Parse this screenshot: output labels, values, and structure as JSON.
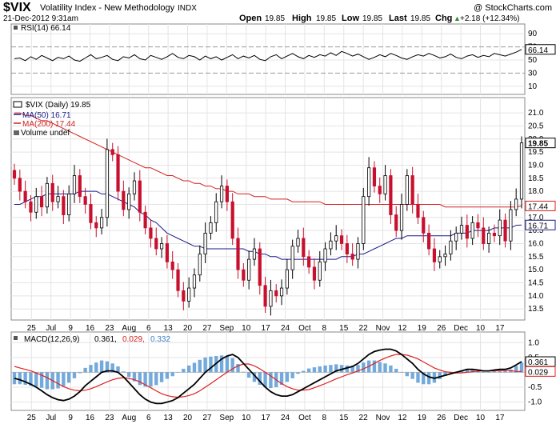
{
  "header": {
    "symbol": "$VIX",
    "name": "Volatility Index - New Methodology",
    "exchange": "INDX",
    "copyright": "@ StockCharts.com",
    "datetime": "21-Dec-2012 9:31am",
    "open_label": "Open",
    "open": "19.85",
    "high_label": "High",
    "high": "19.85",
    "low_label": "Low",
    "low": "19.85",
    "last_label": "Last",
    "last": "19.85",
    "chg_label": "Chg",
    "chg": "+2.18 (+12.34%)",
    "chg_arrow": "▲"
  },
  "colors": {
    "price_up": "#000000",
    "price_down": "#c8102e",
    "ma50": "#1a1a8c",
    "ma200": "#d42020",
    "macd_line": "#000000",
    "signal_line": "#e02020",
    "histogram": "#5b9bd5",
    "grid": "#e4e4e4"
  },
  "rsi_panel": {
    "legend": "RSI(14) 66.14",
    "value_tag": "66.14",
    "ticks": [
      "90",
      "70",
      "50",
      "30",
      "10"
    ],
    "overbought": 70,
    "oversold": 30
  },
  "price_panel": {
    "legend_main": "$VIX (Daily) 19.85",
    "legend_ma50": "MA(50) 16.71",
    "legend_ma200": "MA(200) 17.44",
    "legend_volume": "Volume undef",
    "tag_last": "19.85",
    "tag_ma200": "17.44",
    "tag_ma50": "16.71",
    "y_ticks": [
      "21.0",
      "20.5",
      "20.0",
      "19.5",
      "19.0",
      "18.5",
      "18.0",
      "17.5",
      "17.0",
      "16.5",
      "16.0",
      "15.5",
      "15.0",
      "14.5",
      "14.0",
      "13.5"
    ]
  },
  "macd_panel": {
    "legend_label": "MACD(12,26,9)",
    "legend_macd": "0.361,",
    "legend_signal": "0.029,",
    "legend_hist": "0.332",
    "tag_macd": "0.361",
    "tag_signal": "0.029",
    "ticks": [
      "1.0",
      "0.5",
      "0.0",
      "-0.5",
      "-1.0"
    ]
  },
  "x_axis": {
    "labels": [
      "25",
      "Jul",
      "9",
      "16",
      "23",
      "Aug",
      "6",
      "13",
      "20",
      "27",
      "Sep",
      "10",
      "17",
      "24",
      "Oct",
      "8",
      "15",
      "22",
      "Nov",
      "12",
      "19",
      "26",
      "Dec",
      "10",
      "17"
    ]
  },
  "chart_data": [
    {
      "type": "line",
      "panel": "RSI",
      "series": [
        {
          "name": "RSI(14)",
          "values": [
            52,
            53,
            49,
            55,
            51,
            57,
            53,
            49,
            54,
            52,
            56,
            50,
            48,
            53,
            58,
            52,
            54,
            57,
            51,
            49,
            55,
            53,
            58,
            52,
            50,
            57,
            54,
            51,
            55,
            60,
            54,
            52,
            57,
            55,
            50,
            56,
            52,
            55,
            50,
            54,
            58,
            52,
            56,
            53,
            57,
            51,
            49,
            55,
            58,
            52,
            56,
            60,
            55,
            52,
            57,
            54,
            58,
            56,
            61,
            57,
            63,
            60,
            56,
            59,
            55,
            51,
            54,
            58,
            55,
            60,
            57,
            53,
            51,
            55,
            58,
            56,
            60,
            57,
            53,
            55,
            59,
            54,
            52,
            56,
            58,
            54,
            57,
            55,
            60,
            58,
            56,
            59,
            62,
            66.14
          ]
        }
      ],
      "ylim": [
        0,
        100
      ]
    },
    {
      "type": "line",
      "panel": "Price",
      "x_range": [
        "2012-06-22",
        "2012-12-21"
      ],
      "series": [
        {
          "name": "$VIX (Daily)",
          "values": [
            18.5,
            18.0,
            17.6,
            17.2,
            17.8,
            17.4,
            18.3,
            17.6,
            17.8,
            17.1,
            17.9,
            18.6,
            17.8,
            17.5,
            16.8,
            16.6,
            17.0,
            19.6,
            19.4,
            18.0,
            17.3,
            17.9,
            18.4,
            17.2,
            16.6,
            16.2,
            15.8,
            16.0,
            15.3,
            15.0,
            14.2,
            13.8,
            14.3,
            14.8,
            15.6,
            16.4,
            16.8,
            17.6,
            18.2,
            17.6,
            16.2,
            15.0,
            14.6,
            15.4,
            15.8,
            14.4,
            13.6,
            14.2,
            14.0,
            14.3,
            15.0,
            15.9,
            16.2,
            15.5,
            15.1,
            14.6,
            15.3,
            15.8,
            16.1,
            16.3,
            16.0,
            15.6,
            15.4,
            16.0,
            17.8,
            18.9,
            18.2,
            17.9,
            18.6,
            17.1,
            16.5,
            17.5,
            18.6,
            17.5,
            17.0,
            16.4,
            15.8,
            15.3,
            15.5,
            15.6,
            16.1,
            16.4,
            16.7,
            16.2,
            16.8,
            16.6,
            16.0,
            16.4,
            16.3,
            16.9,
            16.1,
            17.3,
            17.7,
            19.85
          ]
        },
        {
          "name": "MA(50)",
          "values": [
            17.5,
            17.5,
            17.6,
            17.7,
            17.8,
            17.8,
            17.9,
            17.9,
            17.9,
            17.9,
            17.9,
            17.9,
            18.0,
            18.0,
            18.0,
            18.0,
            17.9,
            17.9,
            17.8,
            17.7,
            17.6,
            17.5,
            17.4,
            17.2,
            17.1,
            16.9,
            16.8,
            16.6,
            16.4,
            16.3,
            16.2,
            16.1,
            16.0,
            15.9,
            15.9,
            15.8,
            15.8,
            15.8,
            15.8,
            15.8,
            15.8,
            15.8,
            15.8,
            15.7,
            15.7,
            15.6,
            15.6,
            15.5,
            15.5,
            15.4,
            15.4,
            15.4,
            15.4,
            15.4,
            15.4,
            15.4,
            15.4,
            15.4,
            15.4,
            15.4,
            15.5,
            15.5,
            15.5,
            15.6,
            15.6,
            15.7,
            15.8,
            15.9,
            16.0,
            16.1,
            16.2,
            16.2,
            16.3,
            16.3,
            16.3,
            16.3,
            16.3,
            16.3,
            16.3,
            16.3,
            16.3,
            16.4,
            16.4,
            16.4,
            16.5,
            16.5,
            16.5,
            16.5,
            16.6,
            16.6,
            16.6,
            16.6,
            16.7,
            16.71
          ]
        },
        {
          "name": "MA(200)",
          "values": [
            21.0,
            21.0,
            20.9,
            20.9,
            20.8,
            20.7,
            20.7,
            20.6,
            20.5,
            20.4,
            20.3,
            20.2,
            20.1,
            20.0,
            19.9,
            19.8,
            19.7,
            19.6,
            19.5,
            19.4,
            19.3,
            19.2,
            19.1,
            19.0,
            18.9,
            18.9,
            18.8,
            18.7,
            18.6,
            18.6,
            18.5,
            18.4,
            18.4,
            18.3,
            18.3,
            18.2,
            18.2,
            18.1,
            18.1,
            18.0,
            18.0,
            17.9,
            17.9,
            17.9,
            17.8,
            17.8,
            17.8,
            17.7,
            17.7,
            17.7,
            17.7,
            17.6,
            17.6,
            17.6,
            17.6,
            17.6,
            17.6,
            17.5,
            17.5,
            17.5,
            17.5,
            17.5,
            17.5,
            17.5,
            17.5,
            17.5,
            17.5,
            17.5,
            17.5,
            17.5,
            17.5,
            17.5,
            17.5,
            17.5,
            17.5,
            17.5,
            17.5,
            17.5,
            17.5,
            17.4,
            17.4,
            17.4,
            17.4,
            17.4,
            17.4,
            17.4,
            17.4,
            17.4,
            17.4,
            17.4,
            17.4,
            17.4,
            17.4,
            17.44
          ]
        }
      ],
      "ylim": [
        13.2,
        21.4
      ]
    },
    {
      "type": "line",
      "panel": "MACD",
      "series": [
        {
          "name": "MACD(12,26,9)",
          "values": [
            -0.2,
            -0.25,
            -0.32,
            -0.4,
            -0.5,
            -0.62,
            -0.75,
            -0.85,
            -0.92,
            -0.95,
            -0.9,
            -0.8,
            -0.65,
            -0.45,
            -0.3,
            -0.15,
            0.0,
            0.05,
            0.05,
            0.0,
            -0.15,
            -0.35,
            -0.55,
            -0.75,
            -0.9,
            -1.0,
            -1.05,
            -1.05,
            -1.0,
            -0.95,
            -0.85,
            -0.7,
            -0.55,
            -0.4,
            -0.2,
            0.0,
            0.15,
            0.3,
            0.45,
            0.55,
            0.6,
            0.5,
            0.3,
            0.1,
            -0.1,
            -0.3,
            -0.5,
            -0.65,
            -0.75,
            -0.8,
            -0.8,
            -0.75,
            -0.65,
            -0.55,
            -0.45,
            -0.35,
            -0.25,
            -0.15,
            -0.05,
            0.05,
            0.1,
            0.15,
            0.2,
            0.3,
            0.45,
            0.6,
            0.7,
            0.75,
            0.78,
            0.78,
            0.72,
            0.6,
            0.45,
            0.3,
            0.1,
            -0.05,
            -0.15,
            -0.2,
            -0.15,
            -0.1,
            -0.05,
            0.0,
            0.05,
            0.1,
            0.1,
            0.08,
            0.05,
            0.05,
            0.08,
            0.1,
            0.1,
            0.15,
            0.25,
            0.361
          ]
        },
        {
          "name": "Signal",
          "values": [
            0.2,
            0.15,
            0.1,
            0.05,
            -0.02,
            -0.1,
            -0.18,
            -0.28,
            -0.38,
            -0.48,
            -0.55,
            -0.6,
            -0.62,
            -0.6,
            -0.55,
            -0.48,
            -0.4,
            -0.32,
            -0.25,
            -0.2,
            -0.18,
            -0.2,
            -0.25,
            -0.32,
            -0.42,
            -0.52,
            -0.62,
            -0.72,
            -0.78,
            -0.82,
            -0.84,
            -0.82,
            -0.78,
            -0.72,
            -0.62,
            -0.5,
            -0.38,
            -0.25,
            -0.12,
            0.0,
            0.12,
            0.22,
            0.28,
            0.28,
            0.22,
            0.12,
            0.0,
            -0.12,
            -0.25,
            -0.38,
            -0.48,
            -0.55,
            -0.6,
            -0.6,
            -0.58,
            -0.52,
            -0.45,
            -0.38,
            -0.3,
            -0.22,
            -0.15,
            -0.08,
            -0.02,
            0.05,
            0.12,
            0.2,
            0.3,
            0.4,
            0.48,
            0.55,
            0.6,
            0.6,
            0.58,
            0.52,
            0.45,
            0.35,
            0.25,
            0.15,
            0.08,
            0.02,
            0.0,
            -0.02,
            -0.02,
            0.0,
            0.02,
            0.04,
            0.05,
            0.05,
            0.05,
            0.06,
            0.06,
            0.06,
            0.03,
            0.029
          ]
        }
      ],
      "ylim": [
        -1.2,
        1.25
      ]
    }
  ]
}
